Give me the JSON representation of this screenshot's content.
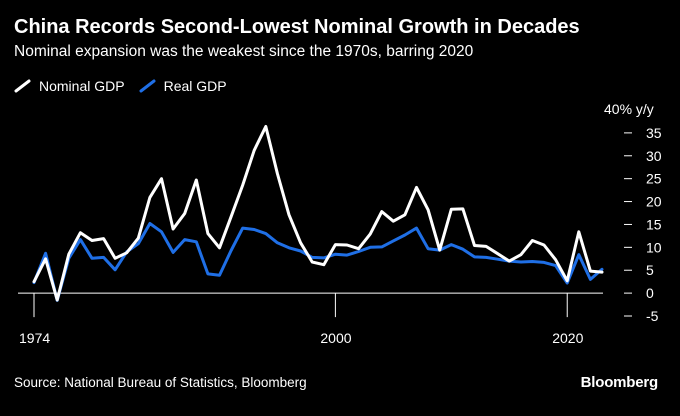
{
  "header": {
    "title": "China Records Second-Lowest Nominal Growth in Decades",
    "subtitle": "Nominal expansion was the weakest since the 1970s, barring 2020"
  },
  "legend": [
    {
      "label": "Nominal GDP",
      "color": "#ffffff"
    },
    {
      "label": "Real GDP",
      "color": "#1f6fe6"
    }
  ],
  "footer": {
    "source": "Source: National Bureau of Statistics, Bloomberg",
    "brand": "Bloomberg"
  },
  "chart_data": {
    "type": "line",
    "title": "China Records Second-Lowest Nominal Growth in Decades",
    "subtitle": "Nominal expansion was the weakest since the 1970s, barring 2020",
    "y_unit_label": "40% y/y",
    "ylim": [
      -5,
      40
    ],
    "y_ticks": [
      35,
      30,
      25,
      20,
      15,
      10,
      5,
      0,
      -5
    ],
    "x_ticks": [
      1974,
      2000,
      2020
    ],
    "xlim": [
      1974,
      2023
    ],
    "grid": false,
    "legend_position": "top-left",
    "x": [
      1974,
      1975,
      1976,
      1977,
      1978,
      1979,
      1980,
      1981,
      1982,
      1983,
      1984,
      1985,
      1986,
      1987,
      1988,
      1989,
      1990,
      1991,
      1992,
      1993,
      1994,
      1995,
      1996,
      1997,
      1998,
      1999,
      2000,
      2001,
      2002,
      2003,
      2004,
      2005,
      2006,
      2007,
      2008,
      2009,
      2010,
      2011,
      2012,
      2013,
      2014,
      2015,
      2016,
      2017,
      2018,
      2019,
      2020,
      2021,
      2022,
      2023
    ],
    "series": [
      {
        "name": "Nominal GDP",
        "color": "#ffffff",
        "values": [
          2.5,
          7.5,
          -1.5,
          8.5,
          13.2,
          11.5,
          11.9,
          7.6,
          8.8,
          12.0,
          20.9,
          25.0,
          14.0,
          17.4,
          24.7,
          13.0,
          9.9,
          16.7,
          23.6,
          31.2,
          36.4,
          26.1,
          17.1,
          11.0,
          6.8,
          6.2,
          10.6,
          10.5,
          9.7,
          12.9,
          17.8,
          15.7,
          17.1,
          23.1,
          18.2,
          9.4,
          18.3,
          18.4,
          10.4,
          10.2,
          8.6,
          7.0,
          8.4,
          11.5,
          10.5,
          7.3,
          2.7,
          13.4,
          4.8,
          4.6
        ]
      },
      {
        "name": "Real GDP",
        "color": "#1f6fe6",
        "values": [
          2.3,
          8.7,
          -1.6,
          7.6,
          11.7,
          7.6,
          7.8,
          5.1,
          9.0,
          10.8,
          15.2,
          13.4,
          8.9,
          11.7,
          11.2,
          4.2,
          3.9,
          9.3,
          14.2,
          13.9,
          13.0,
          11.0,
          9.9,
          9.2,
          7.8,
          7.7,
          8.5,
          8.3,
          9.1,
          10.0,
          10.1,
          11.4,
          12.7,
          14.2,
          9.7,
          9.4,
          10.6,
          9.6,
          7.9,
          7.8,
          7.4,
          7.0,
          6.8,
          6.9,
          6.7,
          6.0,
          2.2,
          8.4,
          3.0,
          5.2
        ]
      }
    ]
  }
}
